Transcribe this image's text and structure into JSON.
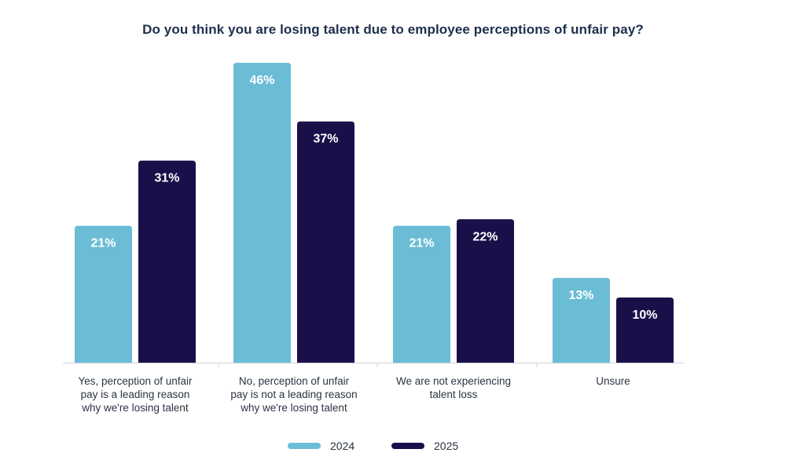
{
  "colors": {
    "series_2024": "#6bbdd6",
    "series_2025": "#1b0f4a",
    "axis": "#cfd3d8",
    "title": "#1d2f4d",
    "text": "#2b3443"
  },
  "chart_data": {
    "type": "bar",
    "title": "Do you think you are losing talent due to employee perceptions of unfair pay?",
    "categories": [
      [
        "Yes, perception of unfair",
        "pay is a leading reason",
        "why we're losing talent"
      ],
      [
        "No, perception of unfair",
        "pay is not a leading reason",
        "why we're losing talent"
      ],
      [
        "We are not experiencing",
        "talent loss"
      ],
      [
        "Unsure"
      ]
    ],
    "series": [
      {
        "name": "2024",
        "values": [
          21,
          46,
          21,
          13
        ],
        "labels": [
          "21%",
          "46%",
          "21%",
          "13%"
        ]
      },
      {
        "name": "2025",
        "values": [
          31,
          37,
          22,
          10
        ],
        "labels": [
          "31%",
          "37%",
          "22%",
          "10%"
        ]
      }
    ],
    "ylim": [
      0,
      46
    ],
    "grid": false,
    "legend_position": "bottom-center"
  }
}
